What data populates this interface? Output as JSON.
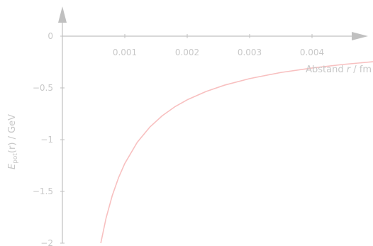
{
  "chart_data": {
    "type": "line",
    "title": "",
    "xlabel": {
      "prefix": "Abstand ",
      "var": "r",
      "suffix": " / fm"
    },
    "ylabel": {
      "main": "E",
      "sub": "pot",
      "arg": "(r)",
      "unit": " / GeV"
    },
    "xlim": [
      0,
      0.005
    ],
    "ylim": [
      -2,
      0
    ],
    "xticks": [
      {
        "value": 0.001,
        "label": "0.001"
      },
      {
        "value": 0.002,
        "label": "0.002"
      },
      {
        "value": 0.003,
        "label": "0.003"
      },
      {
        "value": 0.004,
        "label": "0.004"
      }
    ],
    "yticks": [
      {
        "value": 0,
        "label": "0"
      },
      {
        "value": -0.5,
        "label": "−0.5"
      },
      {
        "value": -1,
        "label": "−1"
      },
      {
        "value": -1.5,
        "label": "−1.5"
      },
      {
        "value": -2,
        "label": "−2"
      }
    ],
    "grid": false,
    "colors": {
      "axis": "#c0c0c0",
      "text": "#c8c8c8",
      "curve": "#f8c0c0"
    },
    "series": [
      {
        "x": [
          0.000615,
          0.0007,
          0.0008,
          0.0009,
          0.001,
          0.0012,
          0.0014,
          0.0016,
          0.0018,
          0.002,
          0.0023,
          0.0026,
          0.003,
          0.0035,
          0.004,
          0.0045,
          0.005
        ],
        "y": [
          -2.0,
          -1.757,
          -1.538,
          -1.367,
          -1.23,
          -1.025,
          -0.879,
          -0.769,
          -0.683,
          -0.615,
          -0.535,
          -0.473,
          -0.41,
          -0.351,
          -0.308,
          -0.273,
          -0.246
        ]
      }
    ]
  }
}
